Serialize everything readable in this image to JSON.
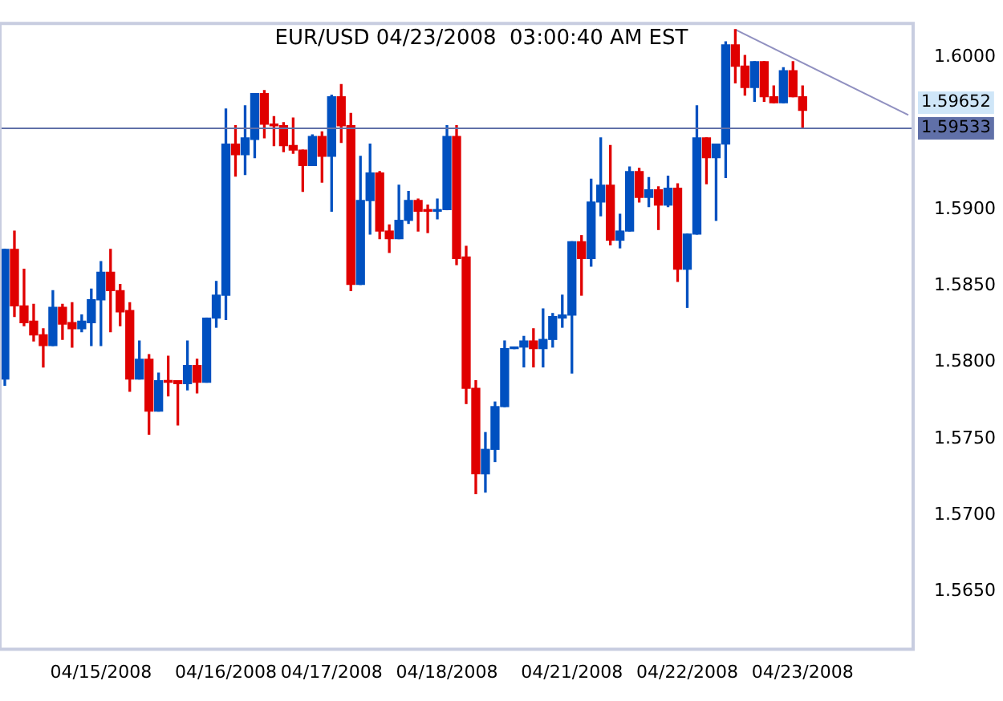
{
  "chart_data": {
    "type": "candlestick",
    "title": "EUR/USD 04/23/2008  03:00:40 AM EST",
    "categories": [
      null,
      null,
      null,
      null,
      null,
      null,
      null,
      null,
      null,
      null,
      "04/15/2008",
      null,
      null,
      null,
      null,
      null,
      null,
      null,
      null,
      null,
      null,
      null,
      null,
      "04/16/2008",
      null,
      null,
      null,
      null,
      null,
      null,
      null,
      null,
      null,
      null,
      "04/17/2008",
      null,
      null,
      null,
      null,
      null,
      null,
      null,
      null,
      null,
      null,
      null,
      "04/18/2008",
      null,
      null,
      null,
      null,
      null,
      null,
      null,
      null,
      null,
      null,
      null,
      null,
      "04/21/2008",
      null,
      null,
      null,
      null,
      null,
      null,
      null,
      null,
      null,
      null,
      null,
      "04/22/2008",
      null,
      null,
      null,
      null,
      null,
      null,
      null,
      null,
      null,
      null,
      null,
      "04/23/2008",
      null,
      null,
      null,
      null,
      null,
      null,
      null,
      null,
      null,
      null,
      null
    ],
    "ohlc": [
      [
        1.5789,
        1.5874,
        1.5785,
        1.5874
      ],
      [
        1.5874,
        1.5886,
        1.583,
        1.5837
      ],
      [
        1.5837,
        1.5861,
        1.5824,
        1.5826
      ],
      [
        1.5827,
        1.5838,
        1.5814,
        1.5818
      ],
      [
        1.5818,
        1.5822,
        1.5797,
        1.5811
      ],
      [
        1.5811,
        1.5847,
        1.5811,
        1.5836
      ],
      [
        1.5836,
        1.5838,
        1.5815,
        1.5825
      ],
      [
        1.5826,
        1.5839,
        1.581,
        1.5822
      ],
      [
        1.5822,
        1.5831,
        1.582,
        1.5827
      ],
      [
        1.5826,
        1.5848,
        1.5811,
        1.5841
      ],
      [
        1.5841,
        1.5866,
        1.5811,
        1.5859
      ],
      [
        1.5859,
        1.5874,
        1.582,
        1.5847
      ],
      [
        1.5847,
        1.5851,
        1.5824,
        1.5833
      ],
      [
        1.5834,
        1.5839,
        1.5781,
        1.5789
      ],
      [
        1.5789,
        1.5814,
        1.5789,
        1.5802
      ],
      [
        1.5802,
        1.5805,
        1.5753,
        1.5768
      ],
      [
        1.5768,
        1.5793,
        1.5768,
        1.5788
      ],
      [
        1.5788,
        1.5804,
        1.5778,
        1.5787
      ],
      [
        1.5788,
        1.5788,
        1.5759,
        1.5786
      ],
      [
        1.5786,
        1.5814,
        1.5782,
        1.5798
      ],
      [
        1.5798,
        1.5802,
        1.578,
        1.5787
      ],
      [
        1.5787,
        1.5829,
        1.5787,
        1.5829
      ],
      [
        1.5829,
        1.5853,
        1.5823,
        1.5844
      ],
      [
        1.5844,
        1.5966,
        1.5828,
        1.5943
      ],
      [
        1.5943,
        1.5955,
        1.5922,
        1.5936
      ],
      [
        1.5936,
        1.5968,
        1.5923,
        1.5947
      ],
      [
        1.5946,
        1.5976,
        1.5934,
        1.5976
      ],
      [
        1.5976,
        1.5978,
        1.5947,
        1.5956
      ],
      [
        1.5956,
        1.5961,
        1.5942,
        1.5955
      ],
      [
        1.5955,
        1.5957,
        1.5938,
        1.5942
      ],
      [
        1.5942,
        1.596,
        1.5937,
        1.5939
      ],
      [
        1.5939,
        1.5939,
        1.5912,
        1.5929
      ],
      [
        1.5929,
        1.5949,
        1.5929,
        1.5948
      ],
      [
        1.5948,
        1.5951,
        1.5918,
        1.5935
      ],
      [
        1.5935,
        1.5975,
        1.5899,
        1.5974
      ],
      [
        1.5974,
        1.5982,
        1.5944,
        1.5955
      ],
      [
        1.5955,
        1.5963,
        1.5847,
        1.5851
      ],
      [
        1.5851,
        1.5935,
        1.5851,
        1.5906
      ],
      [
        1.5906,
        1.5943,
        1.5884,
        1.5924
      ],
      [
        1.5924,
        1.5925,
        1.5881,
        1.5886
      ],
      [
        1.5886,
        1.589,
        1.5872,
        1.5881
      ],
      [
        1.5881,
        1.5916,
        1.5881,
        1.5893
      ],
      [
        1.5893,
        1.5912,
        1.5891,
        1.5906
      ],
      [
        1.5906,
        1.5907,
        1.5886,
        1.5899
      ],
      [
        1.59,
        1.5903,
        1.5885,
        1.5899
      ],
      [
        1.5899,
        1.5907,
        1.5894,
        1.59
      ],
      [
        1.59,
        1.5955,
        1.59,
        1.5948
      ],
      [
        1.5948,
        1.5955,
        1.5864,
        1.5868
      ],
      [
        1.5869,
        1.5876,
        1.5773,
        1.5783
      ],
      [
        1.5783,
        1.5788,
        1.5714,
        1.5727
      ],
      [
        1.5727,
        1.5754,
        1.5715,
        1.5743
      ],
      [
        1.5743,
        1.5774,
        1.5735,
        1.5771
      ],
      [
        1.5771,
        1.5814,
        1.5771,
        1.5809
      ],
      [
        1.5809,
        1.581,
        1.5809,
        1.581
      ],
      [
        1.581,
        1.5817,
        1.5797,
        1.5814
      ],
      [
        1.5814,
        1.5822,
        1.5797,
        1.5809
      ],
      [
        1.5809,
        1.5835,
        1.5797,
        1.5815
      ],
      [
        1.5815,
        1.5832,
        1.581,
        1.583
      ],
      [
        1.5829,
        1.5844,
        1.5823,
        1.5831
      ],
      [
        1.5831,
        1.5879,
        1.5793,
        1.5879
      ],
      [
        1.5879,
        1.5883,
        1.5844,
        1.5868
      ],
      [
        1.5868,
        1.592,
        1.5863,
        1.5905
      ],
      [
        1.5905,
        1.5947,
        1.5896,
        1.5916
      ],
      [
        1.5916,
        1.5942,
        1.5877,
        1.588
      ],
      [
        1.588,
        1.5897,
        1.5875,
        1.5886
      ],
      [
        1.5886,
        1.5928,
        1.5886,
        1.5925
      ],
      [
        1.5925,
        1.5927,
        1.5905,
        1.5908
      ],
      [
        1.5908,
        1.5921,
        1.5902,
        1.5913
      ],
      [
        1.5913,
        1.5915,
        1.5887,
        1.5903
      ],
      [
        1.5903,
        1.5922,
        1.5902,
        1.5914
      ],
      [
        1.5914,
        1.5917,
        1.5853,
        1.5861
      ],
      [
        1.5861,
        1.5884,
        1.5836,
        1.5884
      ],
      [
        1.5884,
        1.5968,
        1.5884,
        1.5947
      ],
      [
        1.5947,
        1.5947,
        1.5917,
        1.5934
      ],
      [
        1.5934,
        1.5943,
        1.5893,
        1.5943
      ],
      [
        1.5943,
        1.601,
        1.5921,
        1.6008
      ],
      [
        1.6008,
        1.6018,
        1.5983,
        1.5994
      ],
      [
        1.5994,
        1.6001,
        1.5975,
        1.598
      ],
      [
        1.598,
        1.5997,
        1.5971,
        1.5997
      ],
      [
        1.5997,
        1.5997,
        1.5971,
        1.5974
      ],
      [
        1.5974,
        1.5981,
        1.597,
        1.597
      ],
      [
        1.597,
        1.5993,
        1.597,
        1.5991
      ],
      [
        1.5991,
        1.5997,
        1.5974,
        1.5974
      ],
      [
        1.5974,
        1.5981,
        1.5954,
        1.5965
      ],
      null,
      null,
      null,
      null,
      null,
      null,
      null,
      null,
      null,
      null,
      null
    ],
    "colors": [
      "#0050c0",
      "#e00000",
      "#e00000",
      "#e00000",
      "#e00000",
      "#0050c0",
      "#e00000",
      "#e00000",
      "#0050c0",
      "#0050c0",
      "#0050c0",
      "#e00000",
      "#e00000",
      "#e00000",
      "#0050c0",
      "#e00000",
      "#0050c0",
      "#e00000",
      "#e00000",
      "#0050c0",
      "#e00000",
      "#0050c0",
      "#0050c0",
      "#0050c0",
      "#e00000",
      "#0050c0",
      "#0050c0",
      "#e00000",
      "#e00000",
      "#e00000",
      "#e00000",
      "#e00000",
      "#0050c0",
      "#e00000",
      "#0050c0",
      "#e00000",
      "#e00000",
      "#0050c0",
      "#0050c0",
      "#e00000",
      "#e00000",
      "#0050c0",
      "#0050c0",
      "#e00000",
      "#e00000",
      "#0050c0",
      "#0050c0",
      "#e00000",
      "#e00000",
      "#e00000",
      "#0050c0",
      "#0050c0",
      "#0050c0",
      "#0050c0",
      "#0050c0",
      "#e00000",
      "#0050c0",
      "#0050c0",
      "#0050c0",
      "#0050c0",
      "#e00000",
      "#0050c0",
      "#0050c0",
      "#e00000",
      "#0050c0",
      "#0050c0",
      "#e00000",
      "#0050c0",
      "#e00000",
      "#0050c0",
      "#e00000",
      "#0050c0",
      "#0050c0",
      "#e00000",
      "#0050c0",
      "#0050c0",
      "#e00000",
      "#e00000",
      "#0050c0",
      "#e00000",
      "#e00000",
      "#0050c0",
      "#e00000",
      "#e00000",
      null,
      null,
      null,
      null,
      null,
      null,
      null,
      null,
      null,
      null,
      null
    ],
    "series": [
      {
        "type": "line",
        "color": "#9090c0",
        "values": [
          null,
          null,
          null,
          null,
          null,
          null,
          null,
          null,
          null,
          null,
          null,
          null,
          null,
          null,
          null,
          null,
          null,
          null,
          null,
          null,
          null,
          null,
          null,
          null,
          null,
          null,
          null,
          null,
          null,
          null,
          null,
          null,
          null,
          null,
          null,
          null,
          null,
          null,
          null,
          null,
          null,
          null,
          null,
          null,
          null,
          null,
          null,
          null,
          null,
          null,
          null,
          null,
          null,
          null,
          null,
          null,
          null,
          null,
          null,
          null,
          null,
          null,
          null,
          null,
          null,
          null,
          null,
          null,
          null,
          null,
          null,
          null,
          null,
          null,
          null,
          null,
          1.6018,
          null,
          null,
          null,
          null,
          null,
          null,
          null,
          null,
          null,
          null,
          null,
          null,
          null,
          null,
          null,
          null,
          null,
          1.5962
        ]
      }
    ],
    "ylim": [
      1.5612,
      1.6022
    ],
    "yticks": [
      {
        "value": 1.565,
        "label": "1.5650"
      },
      {
        "value": 1.57,
        "label": "1.5700"
      },
      {
        "value": 1.575,
        "label": "1.5750"
      },
      {
        "value": 1.58,
        "label": "1.5800"
      },
      {
        "value": 1.585,
        "label": "1.5850"
      },
      {
        "value": 1.59,
        "label": "1.5900"
      },
      {
        "value": 1.6,
        "label": "1.6000"
      }
    ],
    "ref_lines": [
      {
        "axis": "y",
        "value": 1.59533,
        "label": "1.59533",
        "color": "#6070a8"
      }
    ],
    "annotations": [
      "1.59652"
    ],
    "grid": false,
    "legend": false
  }
}
